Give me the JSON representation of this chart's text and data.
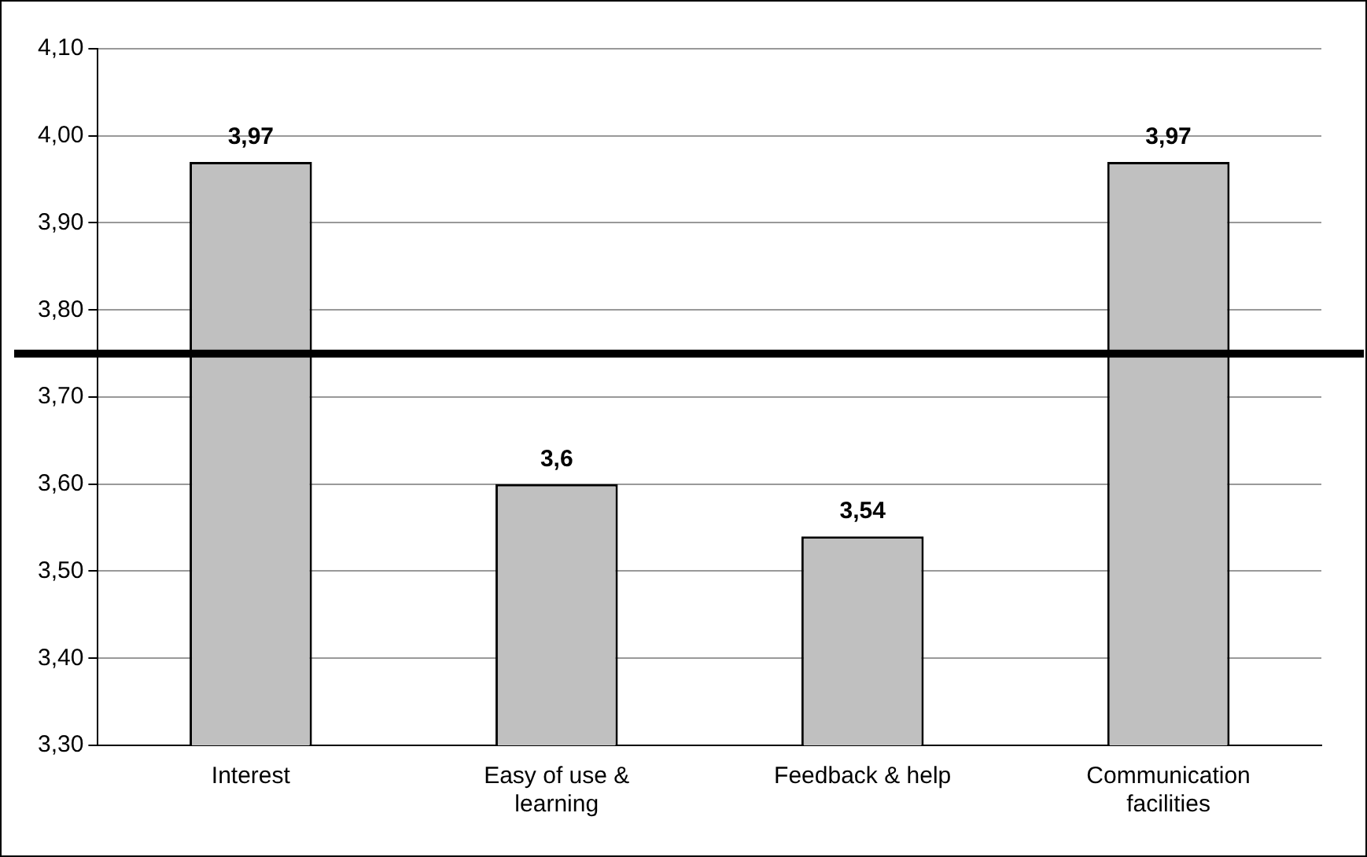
{
  "chart_data": {
    "type": "bar",
    "categories": [
      "Interest",
      "Easy of use & learning",
      "Feedback & help",
      "Communication facilities"
    ],
    "values": [
      3.97,
      3.6,
      3.54,
      3.97
    ],
    "color": "#c0c0c0",
    "value_labels": [
      "3,97",
      "3,6",
      "3,54",
      "3,97"
    ],
    "ylim": [
      3.3,
      4.1
    ],
    "yticks": [
      {
        "value": 3.3,
        "label": "3,30"
      },
      {
        "value": 3.4,
        "label": "3,40"
      },
      {
        "value": 3.5,
        "label": "3,50"
      },
      {
        "value": 3.6,
        "label": "3,60"
      },
      {
        "value": 3.7,
        "label": "3,70"
      },
      {
        "value": 3.8,
        "label": "3,80"
      },
      {
        "value": 3.9,
        "label": "3,90"
      },
      {
        "value": 4.0,
        "label": "4,00"
      },
      {
        "value": 4.1,
        "label": "4,10"
      }
    ],
    "grid": "y",
    "ref_lines": [
      {
        "axis": "y",
        "value": 3.75,
        "color": "#000000"
      }
    ]
  }
}
